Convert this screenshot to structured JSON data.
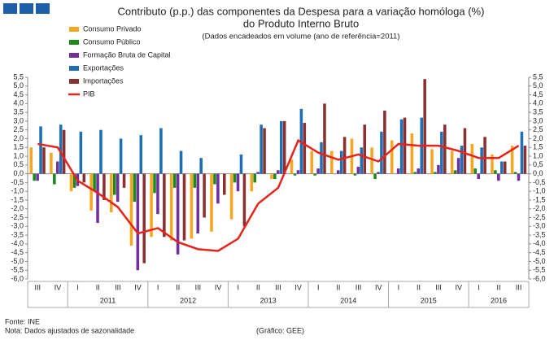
{
  "chart_data": {
    "type": "bar",
    "title": [
      "Contributo (p.p.) das componentes da Despesa para a variação homóloga  (%)",
      "do Produto Interno Bruto"
    ],
    "subtitle": "(Dados encadeados em volume (ano de referência=2011)",
    "categories": [
      "III",
      "IV",
      "I",
      "II",
      "III",
      "IV",
      "I",
      "II",
      "III",
      "IV",
      "I",
      "II",
      "III",
      "IV",
      "I",
      "II",
      "III",
      "IV",
      "I",
      "II",
      "III",
      "IV",
      "I",
      "II",
      "III"
    ],
    "x_groups": [
      {
        "label": null,
        "count": 2
      },
      {
        "label": "2011",
        "count": 4
      },
      {
        "label": "2012",
        "count": 4
      },
      {
        "label": "2013",
        "count": 4
      },
      {
        "label": "2014",
        "count": 4
      },
      {
        "label": "2015",
        "count": 4
      },
      {
        "label": "2016",
        "count": 3
      }
    ],
    "series": [
      {
        "name": "Consumo Privado",
        "color": "#f5a623",
        "values": [
          1.5,
          1.2,
          -1.0,
          -2.1,
          -2.2,
          -4.1,
          -3.6,
          -3.8,
          -3.7,
          -3.3,
          -2.6,
          -1.0,
          -0.3,
          0.8,
          1.3,
          1.3,
          2.0,
          1.5,
          1.9,
          2.3,
          1.4,
          1.3,
          1.7,
          1.1,
          1.6
        ]
      },
      {
        "name": "Consumo Público",
        "color": "#1a8a1a",
        "values": [
          -0.4,
          -0.6,
          -0.8,
          -1.0,
          -1.2,
          -1.6,
          -1.1,
          -0.8,
          -0.8,
          -0.6,
          -0.5,
          -0.5,
          -0.3,
          -0.1,
          -0.1,
          0.0,
          -0.1,
          -0.3,
          0.0,
          0.1,
          0.1,
          0.2,
          0.3,
          0.2,
          0.1
        ]
      },
      {
        "name": "Formação Bruta de Capital",
        "color": "#7030a0",
        "values": [
          -0.4,
          0.7,
          -0.7,
          -2.8,
          -1.6,
          -5.5,
          -2.3,
          -4.6,
          -3.4,
          -1.7,
          -1.0,
          0.1,
          0.2,
          0.2,
          0.3,
          0.2,
          0.4,
          0.1,
          0.3,
          0.3,
          0.5,
          0.9,
          -0.3,
          -0.4,
          -0.4
        ]
      },
      {
        "name": "Exportações",
        "color": "#1f6fb5",
        "values": [
          2.7,
          2.8,
          2.4,
          2.5,
          2.0,
          2.2,
          2.6,
          1.3,
          0.9,
          0.0,
          1.1,
          2.8,
          3.0,
          3.7,
          1.8,
          1.3,
          1.5,
          2.4,
          3.1,
          3.2,
          2.4,
          1.6,
          1.5,
          0.7,
          2.4
        ]
      },
      {
        "name": "Importações",
        "color": "#8b3030",
        "values": [
          1.5,
          2.5,
          -0.5,
          -1.5,
          -0.8,
          -5.1,
          -3.6,
          -3.8,
          -2.5,
          -1.2,
          -3.0,
          2.6,
          3.0,
          2.9,
          4.0,
          2.1,
          2.8,
          3.6,
          3.2,
          5.4,
          2.8,
          2.6,
          2.1,
          0.7,
          1.6
        ]
      },
      {
        "name": "PIB",
        "color": "#e8231c",
        "line": true,
        "values": [
          1.7,
          1.5,
          -0.4,
          -1.1,
          -1.9,
          -3.4,
          -3.1,
          -3.9,
          -4.3,
          -4.4,
          -3.7,
          -1.7,
          -0.8,
          1.9,
          1.2,
          0.8,
          1.1,
          0.7,
          1.7,
          1.6,
          1.6,
          1.3,
          0.9,
          0.9,
          1.6
        ]
      }
    ],
    "ylim": [
      -6.0,
      5.5
    ],
    "yticks": [
      {
        "value": -6.0,
        "label": "-6,0"
      },
      {
        "value": -5.5,
        "label": "-5,5"
      },
      {
        "value": -5.0,
        "label": "-5,0"
      },
      {
        "value": -4.5,
        "label": "-4,5"
      },
      {
        "value": -4.0,
        "label": "-4,0"
      },
      {
        "value": -3.5,
        "label": "-3,5"
      },
      {
        "value": -3.0,
        "label": "-3,0"
      },
      {
        "value": -2.5,
        "label": "-2,5"
      },
      {
        "value": -2.0,
        "label": "-2,0"
      },
      {
        "value": -1.5,
        "label": "-1,5"
      },
      {
        "value": -1.0,
        "label": "-1,0"
      },
      {
        "value": -0.5,
        "label": "-0,5"
      },
      {
        "value": 0,
        "label": "0,0"
      },
      {
        "value": 0.5,
        "label": "0,5"
      },
      {
        "value": 1.0,
        "label": "1,0"
      },
      {
        "value": 1.5,
        "label": "1,5"
      },
      {
        "value": 2.0,
        "label": "2,0"
      },
      {
        "value": 2.5,
        "label": "2,5"
      },
      {
        "value": 3.0,
        "label": "3,0"
      },
      {
        "value": 3.5,
        "label": "3,5"
      },
      {
        "value": 4.0,
        "label": "4,0"
      },
      {
        "value": 4.5,
        "label": "4,5"
      },
      {
        "value": 5.0,
        "label": "5,0"
      },
      {
        "value": 5.5,
        "label": "5,5"
      }
    ],
    "notes": [
      "Fonte:  INE",
      "Nota: Dados ajustados de sazonalidade"
    ],
    "credit": "(Gráfico:  GEE)"
  }
}
